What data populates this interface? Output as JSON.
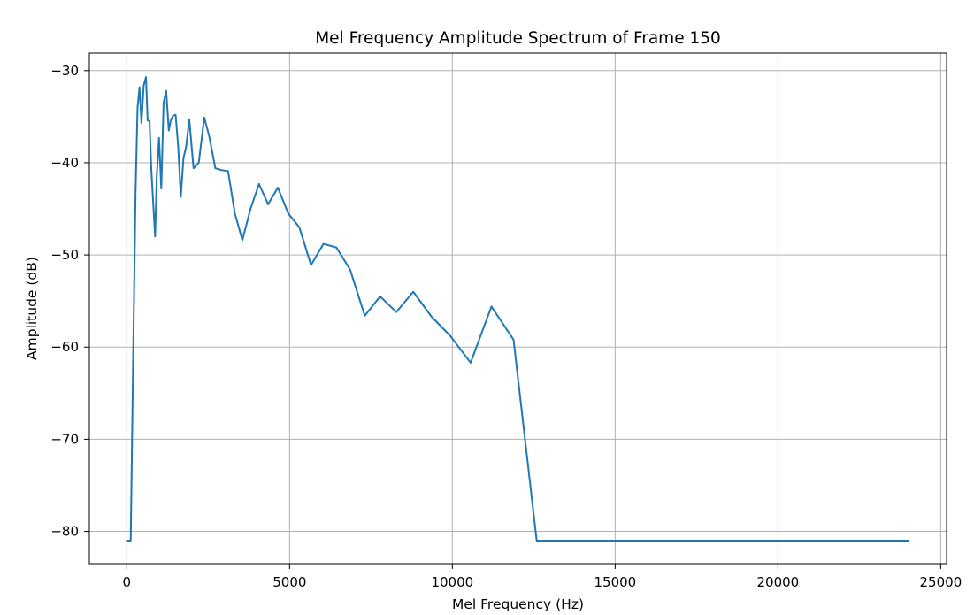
{
  "chart_data": {
    "type": "line",
    "title": "Mel Frequency Amplitude Spectrum of Frame 150",
    "xlabel": "Mel Frequency (Hz)",
    "ylabel": "Amplitude (dB)",
    "xlim": [
      -1150,
      25180
    ],
    "ylim": [
      -83.5,
      -28.1
    ],
    "xticks": [
      0,
      5000,
      10000,
      15000,
      20000,
      25000
    ],
    "xtick_labels": [
      "0",
      "5000",
      "10000",
      "15000",
      "20000",
      "25000"
    ],
    "yticks": [
      -30,
      -40,
      -50,
      -60,
      -70,
      -80
    ],
    "ytick_labels": [
      "−30",
      "−40",
      "−50",
      "−60",
      "−70",
      "−80"
    ],
    "grid": true,
    "line_color": "#1f77b4",
    "series": [
      {
        "x": [
          0,
          120,
          200,
          270,
          330,
          390,
          450,
          520,
          590,
          640,
          700,
          750,
          810,
          870,
          920,
          990,
          1060,
          1130,
          1210,
          1290,
          1350,
          1420,
          1500,
          1580,
          1660,
          1740,
          1820,
          1920,
          2050,
          2210,
          2380,
          2530,
          2720,
          2910,
          3110,
          3320,
          3550,
          3800,
          4060,
          4340,
          4640,
          4960,
          5300,
          5660,
          6040,
          6440,
          6860,
          7310,
          7780,
          8280,
          8800,
          9360,
          9940,
          10560,
          11200,
          11880,
          12590,
          13340,
          14120,
          14940,
          15100,
          15800,
          17000,
          19000,
          21000,
          22500,
          24000
        ],
        "y": [
          -81.0,
          -81.0,
          -60.0,
          -43.0,
          -34.0,
          -31.8,
          -35.7,
          -31.6,
          -30.7,
          -35.4,
          -35.5,
          -40.5,
          -44.3,
          -48.0,
          -41.5,
          -37.3,
          -42.8,
          -33.5,
          -32.2,
          -36.5,
          -35.4,
          -34.9,
          -34.8,
          -38.3,
          -43.7,
          -39.5,
          -38.3,
          -35.3,
          -40.6,
          -40.0,
          -35.1,
          -37.1,
          -40.6,
          -40.8,
          -40.9,
          -45.5,
          -48.4,
          -45.0,
          -42.3,
          -44.5,
          -42.7,
          -45.5,
          -47.0,
          -51.1,
          -48.8,
          -49.2,
          -51.6,
          -56.6,
          -54.5,
          -56.2,
          -54.0,
          -56.7,
          -58.8,
          -61.7,
          -55.6,
          -59.2,
          -81.0,
          -81.0,
          -81.0,
          -81.0,
          -81.0,
          -81.0,
          -81.0,
          -81.0,
          -81.0,
          -81.0,
          -81.0
        ]
      }
    ]
  }
}
